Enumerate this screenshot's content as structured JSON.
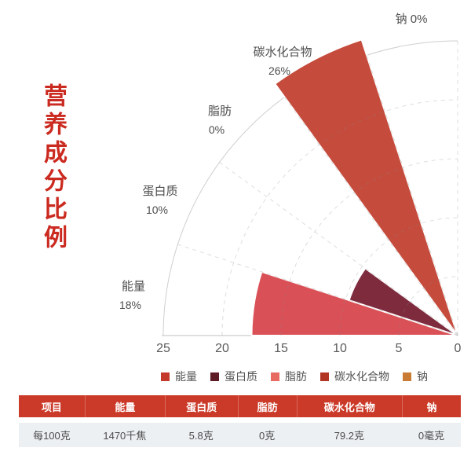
{
  "page_title": "营养成分比例",
  "chart_data": {
    "type": "bar",
    "subtype": "polar-nightingale-quarter",
    "title": "营养成分比例",
    "categories": [
      "能量",
      "蛋白质",
      "脂肪",
      "碳水化合物",
      "钠"
    ],
    "values": [
      17.5,
      9.7,
      0,
      26.4,
      0
    ],
    "percent_labels": [
      "18%",
      "10%",
      "0%",
      "26%",
      "0%"
    ],
    "sector_colors": [
      "#d95157",
      "#7e2b3e",
      "#e7695f",
      "#c54b3c",
      "#ca7a33"
    ],
    "radial_axis": {
      "min": 0,
      "max": 25,
      "tick_step": 5,
      "ticks": [
        "25",
        "20",
        "15",
        "10",
        "5",
        "0"
      ]
    },
    "angular_span_deg": 90,
    "grid": "dashed radial lines and arcs, solid outer arc and baseline",
    "legend_position": "bottom"
  },
  "legend": {
    "items": [
      {
        "label": "能量",
        "color": "#c43a2c"
      },
      {
        "label": "蛋白质",
        "color": "#5c1b25"
      },
      {
        "label": "脂肪",
        "color": "#e76b60"
      },
      {
        "label": "碳水化合物",
        "color": "#b23523"
      },
      {
        "label": "钠",
        "color": "#c97a33"
      }
    ]
  },
  "table": {
    "headers": [
      "项目",
      "能量",
      "蛋白质",
      "脂肪",
      "碳水化合物",
      "钠"
    ],
    "rows": [
      [
        "每100克",
        "1470千焦",
        "5.8克",
        "0克",
        "79.2克",
        "0毫克"
      ]
    ]
  }
}
